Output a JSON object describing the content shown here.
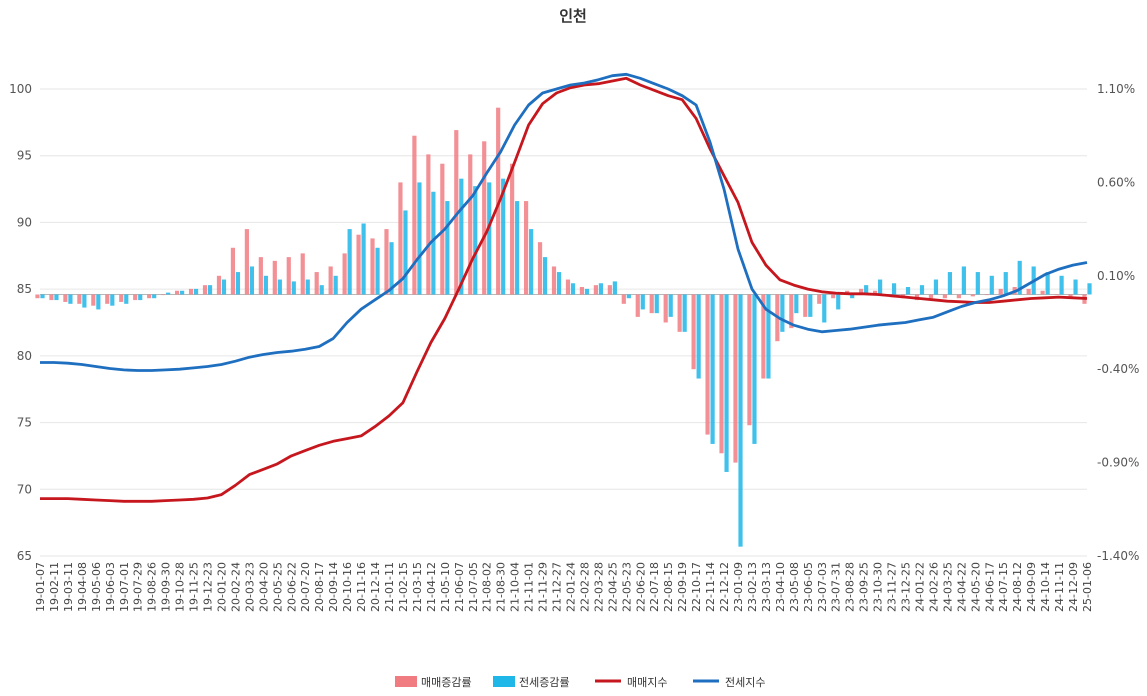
{
  "chart_data": {
    "type": "line",
    "title": "인천",
    "left_axis": {
      "min": 65,
      "max": 100,
      "ticks": [
        100,
        95,
        90,
        85,
        80,
        75,
        70,
        65
      ]
    },
    "right_axis": {
      "min": -1.4,
      "max": 1.1,
      "ticks": [
        "1.10%",
        "0.60%",
        "0.10%",
        "-0.40%",
        "-0.90%",
        "-1.40%"
      ],
      "tick_values": [
        1.1,
        0.6,
        0.1,
        -0.4,
        -0.9,
        -1.4
      ]
    },
    "x_labels": [
      "19-01-07",
      "19-02-11",
      "19-03-11",
      "19-04-08",
      "19-05-06",
      "19-06-03",
      "19-07-01",
      "19-07-29",
      "19-08-26",
      "19-09-30",
      "19-10-28",
      "19-11-25",
      "19-12-23",
      "20-01-20",
      "20-02-24",
      "20-03-23",
      "20-04-20",
      "20-05-25",
      "20-06-22",
      "20-07-20",
      "20-08-17",
      "20-09-14",
      "20-10-16",
      "20-11-16",
      "20-12-14",
      "21-01-11",
      "21-02-15",
      "21-03-15",
      "21-04-12",
      "21-05-10",
      "21-06-07",
      "21-07-05",
      "21-08-02",
      "21-08-30",
      "21-10-04",
      "21-11-01",
      "21-11-29",
      "21-12-27",
      "22-01-24",
      "22-02-28",
      "22-03-28",
      "22-04-25",
      "22-05-23",
      "22-06-20",
      "22-07-18",
      "22-08-15",
      "22-09-19",
      "22-10-17",
      "22-11-14",
      "22-12-12",
      "23-01-09",
      "23-02-13",
      "23-03-13",
      "23-04-10",
      "23-05-08",
      "23-06-05",
      "23-07-03",
      "23-07-31",
      "23-08-28",
      "23-09-25",
      "23-10-30",
      "23-11-27",
      "23-12-25",
      "24-01-22",
      "24-02-26",
      "24-03-25",
      "24-04-22",
      "24-05-20",
      "24-06-17",
      "24-07-15",
      "24-08-12",
      "24-09-09",
      "24-10-14",
      "24-11-11",
      "24-12-09",
      "25-01-06"
    ],
    "series": [
      {
        "name": "매매증감률",
        "kind": "bar",
        "axis": "right",
        "color": "#f07c82",
        "values": [
          -0.02,
          -0.03,
          -0.04,
          -0.05,
          -0.06,
          -0.05,
          -0.04,
          -0.03,
          -0.02,
          0.0,
          0.02,
          0.03,
          0.05,
          0.1,
          0.25,
          0.35,
          0.2,
          0.18,
          0.2,
          0.22,
          0.12,
          0.15,
          0.22,
          0.32,
          0.3,
          0.35,
          0.6,
          0.85,
          0.75,
          0.7,
          0.88,
          0.75,
          0.82,
          1.0,
          0.7,
          0.5,
          0.28,
          0.15,
          0.08,
          0.04,
          0.05,
          0.05,
          -0.05,
          -0.12,
          -0.1,
          -0.15,
          -0.2,
          -0.4,
          -0.75,
          -0.85,
          -0.9,
          -0.7,
          -0.45,
          -0.25,
          -0.18,
          -0.12,
          -0.05,
          -0.02,
          0.02,
          0.03,
          0.02,
          0.0,
          -0.02,
          -0.03,
          -0.02,
          -0.02,
          -0.02,
          -0.01,
          0.0,
          0.03,
          0.04,
          0.03,
          0.02,
          0.0,
          -0.02,
          -0.05
        ]
      },
      {
        "name": "전세증감률",
        "kind": "bar",
        "axis": "right",
        "color": "#1fb6e8",
        "values": [
          -0.02,
          -0.03,
          -0.05,
          -0.07,
          -0.08,
          -0.06,
          -0.05,
          -0.03,
          -0.02,
          0.01,
          0.02,
          0.03,
          0.05,
          0.08,
          0.12,
          0.15,
          0.1,
          0.08,
          0.07,
          0.08,
          0.05,
          0.1,
          0.35,
          0.38,
          0.25,
          0.28,
          0.45,
          0.6,
          0.55,
          0.5,
          0.62,
          0.58,
          0.6,
          0.62,
          0.5,
          0.35,
          0.2,
          0.12,
          0.06,
          0.03,
          0.06,
          0.07,
          -0.02,
          -0.08,
          -0.1,
          -0.12,
          -0.2,
          -0.45,
          -0.8,
          -0.95,
          -1.35,
          -0.8,
          -0.45,
          -0.2,
          -0.1,
          -0.12,
          -0.15,
          -0.08,
          -0.02,
          0.05,
          0.08,
          0.06,
          0.04,
          0.05,
          0.08,
          0.12,
          0.15,
          0.12,
          0.1,
          0.12,
          0.18,
          0.15,
          0.12,
          0.1,
          0.08,
          0.06
        ]
      },
      {
        "name": "매매지수",
        "kind": "line",
        "axis": "left",
        "color": "#c6171e",
        "values": [
          69.3,
          69.3,
          69.3,
          69.25,
          69.2,
          69.15,
          69.1,
          69.1,
          69.1,
          69.15,
          69.2,
          69.25,
          69.35,
          69.6,
          70.3,
          71.1,
          71.5,
          71.9,
          72.5,
          72.9,
          73.3,
          73.6,
          73.8,
          74.0,
          74.7,
          75.5,
          76.5,
          78.8,
          81.0,
          82.8,
          85.0,
          87.3,
          89.3,
          91.8,
          94.5,
          97.3,
          98.9,
          99.7,
          100.1,
          100.3,
          100.4,
          100.6,
          100.8,
          100.3,
          99.9,
          99.5,
          99.2,
          97.8,
          95.5,
          93.5,
          91.5,
          88.5,
          86.8,
          85.7,
          85.3,
          85.0,
          84.8,
          84.7,
          84.65,
          84.65,
          84.6,
          84.5,
          84.4,
          84.3,
          84.2,
          84.1,
          84.05,
          84.0,
          84.0,
          84.1,
          84.2,
          84.3,
          84.35,
          84.4,
          84.35,
          84.3
        ]
      },
      {
        "name": "전세지수",
        "kind": "line",
        "axis": "left",
        "color": "#1f6fc0",
        "values": [
          79.5,
          79.5,
          79.45,
          79.35,
          79.2,
          79.05,
          78.95,
          78.9,
          78.9,
          78.95,
          79.0,
          79.1,
          79.2,
          79.35,
          79.6,
          79.9,
          80.1,
          80.25,
          80.35,
          80.5,
          80.7,
          81.3,
          82.5,
          83.5,
          84.2,
          84.9,
          85.8,
          87.2,
          88.5,
          89.5,
          90.8,
          92.0,
          93.7,
          95.3,
          97.3,
          98.8,
          99.7,
          100.0,
          100.3,
          100.45,
          100.7,
          101.0,
          101.1,
          100.8,
          100.4,
          100.0,
          99.5,
          98.8,
          96.0,
          92.5,
          88.0,
          85.0,
          83.5,
          82.8,
          82.3,
          82.0,
          81.8,
          81.9,
          82.0,
          82.15,
          82.3,
          82.4,
          82.5,
          82.7,
          82.9,
          83.3,
          83.7,
          84.0,
          84.2,
          84.5,
          84.9,
          85.5,
          86.1,
          86.5,
          86.8,
          87.0
        ]
      }
    ],
    "legend_position": "bottom"
  }
}
